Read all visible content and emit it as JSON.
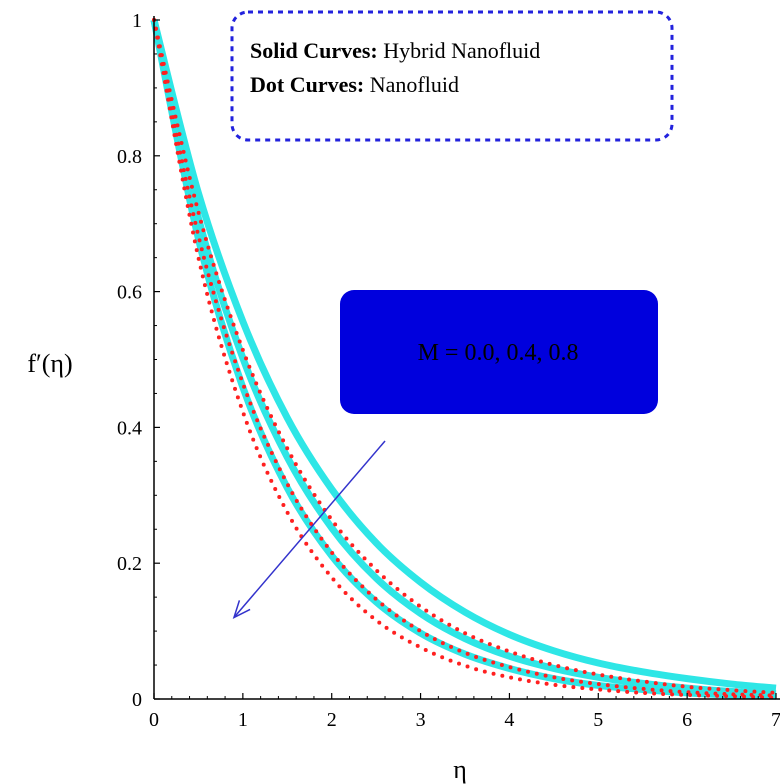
{
  "chart_data": {
    "type": "line",
    "title": "",
    "xlabel": "η",
    "ylabel": "f′(η)",
    "xlim": [
      0,
      7
    ],
    "ylim": [
      0,
      1
    ],
    "x_ticks": [
      "0",
      "1",
      "2",
      "3",
      "4",
      "5",
      "6",
      "7"
    ],
    "y_ticks": [
      "0",
      "0.2",
      "0.4",
      "0.6",
      "0.8",
      "1"
    ],
    "x": [
      0,
      0.5,
      1,
      1.5,
      2,
      2.5,
      3,
      3.5,
      4,
      4.5,
      5,
      5.5,
      6,
      6.5,
      7
    ],
    "series": [
      {
        "group": "hybrid",
        "M": "0.0",
        "style": "solid",
        "color": "#2ee6e6",
        "values": [
          1.0,
          0.745,
          0.556,
          0.414,
          0.309,
          0.23,
          0.172,
          0.128,
          0.095,
          0.071,
          0.053,
          0.04,
          0.03,
          0.022,
          0.016
        ]
      },
      {
        "group": "hybrid",
        "M": "0.4",
        "style": "solid",
        "color": "#2ee6e6",
        "values": [
          1.0,
          0.708,
          0.502,
          0.356,
          0.252,
          0.178,
          0.126,
          0.089,
          0.063,
          0.045,
          0.032,
          0.023,
          0.016,
          0.011,
          0.008
        ]
      },
      {
        "group": "hybrid",
        "M": "0.8",
        "style": "solid",
        "color": "#2ee6e6",
        "values": [
          1.0,
          0.678,
          0.459,
          0.311,
          0.211,
          0.143,
          0.097,
          0.066,
          0.045,
          0.03,
          0.02,
          0.014,
          0.009,
          0.006,
          0.004
        ]
      },
      {
        "group": "nano",
        "M": "0.0",
        "style": "dotted",
        "color": "#ff2020",
        "values": [
          1.0,
          0.717,
          0.514,
          0.369,
          0.264,
          0.19,
          0.136,
          0.097,
          0.07,
          0.05,
          0.036,
          0.026,
          0.018,
          0.013,
          0.009
        ]
      },
      {
        "group": "nano",
        "M": "0.4",
        "style": "dotted",
        "color": "#ff2020",
        "values": [
          1.0,
          0.682,
          0.465,
          0.317,
          0.216,
          0.147,
          0.1,
          0.068,
          0.047,
          0.032,
          0.022,
          0.015,
          0.01,
          0.007,
          0.005
        ]
      },
      {
        "group": "nano",
        "M": "0.8",
        "style": "dotted",
        "color": "#ff2020",
        "values": [
          1.0,
          0.65,
          0.423,
          0.275,
          0.179,
          0.116,
          0.076,
          0.049,
          0.032,
          0.021,
          0.014,
          0.009,
          0.006,
          0.004,
          0.002
        ]
      }
    ],
    "legend": {
      "placement": "top",
      "border_color": "#2222dd",
      "lines": [
        {
          "bold": "Solid Curves:",
          "normal": " Hybrid Nanofluid"
        },
        {
          "bold": "Dot Curves:",
          "normal": " Nanofluid"
        }
      ]
    },
    "annotation": {
      "text": "M = 0.0, 0.4, 0.8",
      "box_color": "#0000dd",
      "arrow_color": "#3333cc",
      "arrow_from": [
        2.6,
        0.38
      ],
      "arrow_to": [
        0.9,
        0.12
      ]
    },
    "grid": false
  }
}
